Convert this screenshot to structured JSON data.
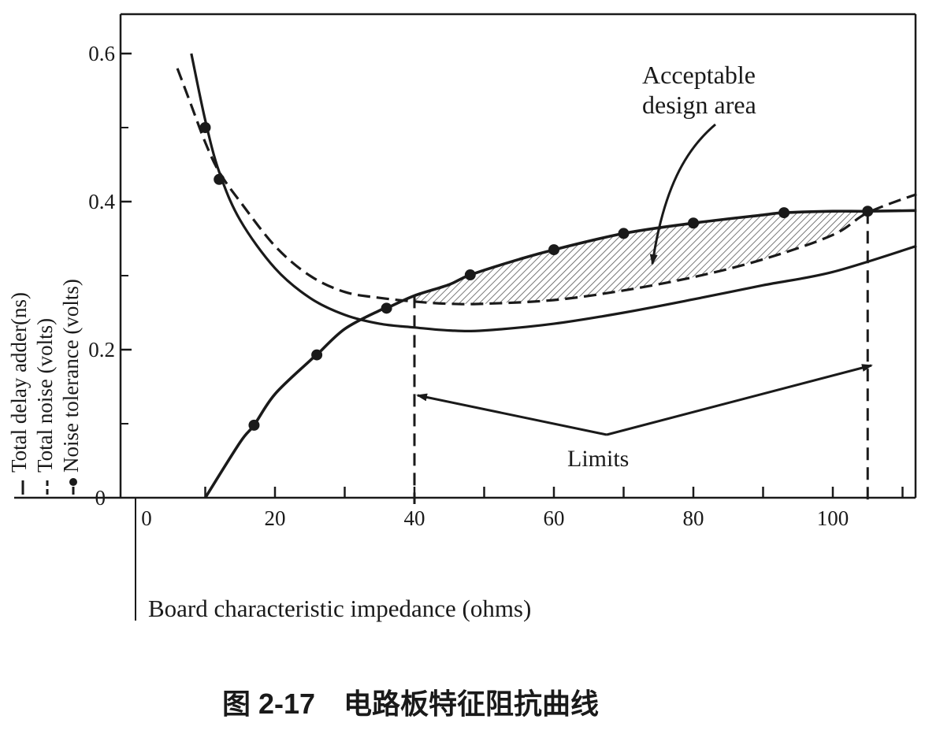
{
  "chart_data": {
    "type": "line",
    "xlabel": "Board characteristic impedance (ohms)",
    "x_ticks": [
      "0",
      "20",
      "40",
      "60",
      "80",
      "100"
    ],
    "y_ticks": [
      "0",
      "0.2",
      "0.4",
      "0.6"
    ],
    "xlim": [
      0,
      112
    ],
    "ylim": [
      0,
      0.6
    ],
    "grid": false,
    "legend": [
      {
        "label": "Total delay adder(ns)",
        "style": "solid"
      },
      {
        "label": "Total noise (volts)",
        "style": "dashed"
      },
      {
        "label": "Noise tolerance (volts)",
        "style": "dash-dot-markers"
      }
    ],
    "series": [
      {
        "name": "Total delay adder(ns)",
        "style": "solid",
        "x": [
          8,
          10,
          12,
          15,
          20,
          25,
          30,
          35,
          40,
          45,
          50,
          60,
          70,
          80,
          90,
          100,
          112
        ],
        "y": [
          0.6,
          0.51,
          0.44,
          0.375,
          0.31,
          0.27,
          0.247,
          0.235,
          0.23,
          0.226,
          0.226,
          0.235,
          0.25,
          0.268,
          0.287,
          0.305,
          0.34
        ]
      },
      {
        "name": "Total noise (volts)",
        "style": "dashed",
        "x": [
          6,
          8,
          10,
          12,
          15,
          20,
          25,
          30,
          35,
          40,
          45,
          50,
          60,
          70,
          80,
          90,
          100,
          105,
          112
        ],
        "y": [
          0.58,
          0.53,
          0.48,
          0.44,
          0.4,
          0.34,
          0.3,
          0.278,
          0.27,
          0.265,
          0.262,
          0.262,
          0.267,
          0.28,
          0.298,
          0.322,
          0.355,
          0.385,
          0.41
        ]
      },
      {
        "name": "Noise tolerance (volts)",
        "style": "dash-dot",
        "x": [
          10,
          15,
          17,
          20,
          25,
          26,
          30,
          35,
          36,
          40,
          45,
          48,
          55,
          60,
          70,
          80,
          90,
          93,
          100,
          105,
          112
        ],
        "y": [
          0.0,
          0.075,
          0.098,
          0.14,
          0.185,
          0.193,
          0.228,
          0.253,
          0.256,
          0.273,
          0.288,
          0.301,
          0.322,
          0.335,
          0.357,
          0.371,
          0.382,
          0.385,
          0.387,
          0.387,
          0.388
        ]
      }
    ],
    "markers": {
      "x": [
        12,
        17,
        26,
        36,
        48,
        60,
        70,
        80,
        93,
        105
      ],
      "y": [
        0.43,
        0.098,
        0.193,
        0.256,
        0.301,
        0.335,
        0.357,
        0.371,
        0.385,
        0.387
      ],
      "extra": [
        {
          "x": 10,
          "y": 0.5
        }
      ]
    },
    "limits": {
      "x": [
        40,
        105
      ],
      "label": "Limits"
    },
    "annotation": {
      "text": [
        "Acceptable",
        "design area"
      ],
      "shaded_region_between": [
        "Total noise (volts)",
        "Noise tolerance (volts)"
      ],
      "shaded_x_range": [
        40,
        105
      ]
    }
  },
  "caption": "图 2-17　电路板特征阻抗曲线",
  "colors": {
    "ink": "#1a1a1a",
    "background": "#ffffff",
    "hatch": "#555555"
  }
}
